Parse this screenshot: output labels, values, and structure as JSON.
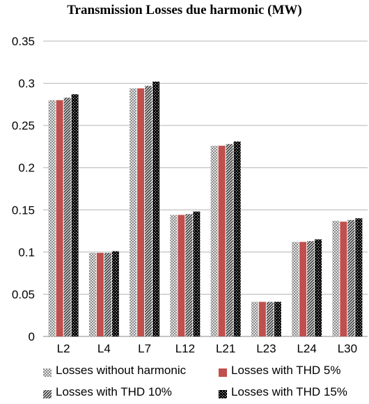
{
  "chart_data": {
    "type": "bar",
    "title": "Transmission Losses due harmonic (MW)",
    "xlabel": "",
    "ylabel": "",
    "categories": [
      "L2",
      "L4",
      "L7",
      "L12",
      "L21",
      "L23",
      "L24",
      "L30"
    ],
    "ylim": [
      0,
      0.35
    ],
    "yticks": [
      "0",
      "0.05",
      "0.1",
      "0.15",
      "0.2",
      "0.25",
      "0.3",
      "0.35"
    ],
    "grid": true,
    "legend_position": "bottom",
    "series": [
      {
        "name": "Losses without harmonic",
        "pattern": "light-dotted",
        "color": "#9a9a9a",
        "values": [
          0.28,
          0.099,
          0.294,
          0.144,
          0.226,
          0.041,
          0.112,
          0.137
        ]
      },
      {
        "name": "Losses with THD 5%",
        "pattern": "solid",
        "color": "#c0504d",
        "values": [
          0.28,
          0.099,
          0.294,
          0.144,
          0.226,
          0.041,
          0.112,
          0.136
        ]
      },
      {
        "name": "Losses with THD 10%",
        "pattern": "dark-diagonal",
        "color": "#555555",
        "values": [
          0.283,
          0.099,
          0.297,
          0.145,
          0.228,
          0.041,
          0.113,
          0.138
        ]
      },
      {
        "name": "Losses with THD 15%",
        "pattern": "black-dotted",
        "color": "#000000",
        "values": [
          0.287,
          0.101,
          0.302,
          0.148,
          0.231,
          0.041,
          0.115,
          0.14
        ]
      }
    ]
  }
}
